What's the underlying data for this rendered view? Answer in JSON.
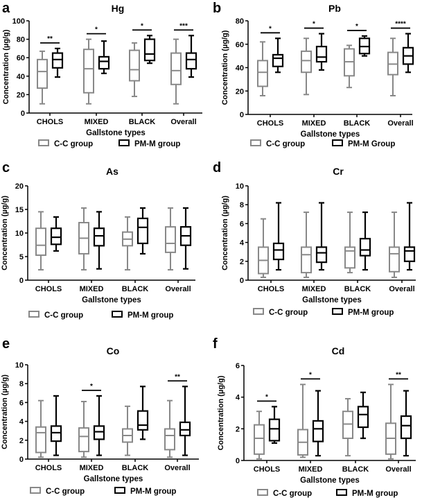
{
  "figure": {
    "colors": {
      "cc": "#888888",
      "pm": "#000000"
    }
  },
  "chart_data": [
    {
      "type": "box",
      "panel": "a",
      "title": "Hg",
      "xlabel": "Gallstone types",
      "ylabel": "Concentration (µg/g)",
      "ylim": [
        0,
        100
      ],
      "yticks": [
        0,
        20,
        40,
        60,
        80,
        100
      ],
      "categories": [
        "CHOLS",
        "MIXED",
        "BLACK",
        "Overall"
      ],
      "legend": [
        "C-C group",
        "PM-M group"
      ],
      "series": [
        {
          "name": "C-C group",
          "boxes": [
            {
              "min": 10,
              "q1": 27,
              "median": 45,
              "q3": 58,
              "max": 67
            },
            {
              "min": 10,
              "q1": 22,
              "median": 48,
              "q3": 69,
              "max": 80
            },
            {
              "min": 18,
              "q1": 35,
              "median": 47,
              "q3": 68,
              "max": 76
            },
            {
              "min": 10,
              "q1": 31,
              "median": 46,
              "q3": 65,
              "max": 80
            }
          ]
        },
        {
          "name": "PM-M group",
          "boxes": [
            {
              "min": 39,
              "q1": 49,
              "median": 58,
              "q3": 65,
              "max": 70
            },
            {
              "min": 43,
              "q1": 48,
              "median": 56,
              "q3": 61,
              "max": 78
            },
            {
              "min": 54,
              "q1": 57,
              "median": 64,
              "q3": 80,
              "max": 84
            },
            {
              "min": 39,
              "q1": 48,
              "median": 58,
              "q3": 65,
              "max": 84
            }
          ]
        }
      ],
      "significance": [
        "**",
        "*",
        "*",
        "***"
      ]
    },
    {
      "type": "box",
      "panel": "b",
      "title": "Pb",
      "xlabel": "Gallstone types",
      "ylabel": "Concentration (µg/g)",
      "ylim": [
        0,
        80
      ],
      "yticks": [
        0,
        20,
        40,
        60,
        80
      ],
      "categories": [
        "CHOLS",
        "MIXED",
        "BLACK",
        "Overall"
      ],
      "legend": [
        "C-C group",
        "PM-M Group"
      ],
      "series": [
        {
          "name": "C-C group",
          "boxes": [
            {
              "min": 16,
              "q1": 24,
              "median": 36,
              "q3": 46,
              "max": 62
            },
            {
              "min": 17,
              "q1": 36,
              "median": 46,
              "q3": 54,
              "max": 65
            },
            {
              "min": 23,
              "q1": 33,
              "median": 45,
              "q3": 56,
              "max": 59
            },
            {
              "min": 16,
              "q1": 34,
              "median": 43,
              "q3": 53,
              "max": 65
            }
          ]
        },
        {
          "name": "PM-M Group",
          "boxes": [
            {
              "min": 36,
              "q1": 41,
              "median": 48,
              "q3": 51,
              "max": 65
            },
            {
              "min": 38,
              "q1": 45,
              "median": 49,
              "q3": 58,
              "max": 69
            },
            {
              "min": 50,
              "q1": 52,
              "median": 58,
              "q3": 65,
              "max": 67
            },
            {
              "min": 36,
              "q1": 43,
              "median": 50,
              "q3": 57,
              "max": 69
            }
          ]
        }
      ],
      "significance": [
        "*",
        "*",
        "*",
        "****"
      ]
    },
    {
      "type": "box",
      "panel": "c",
      "title": "As",
      "xlabel": "Gallstone types",
      "ylabel": "Concentration (µg/g)",
      "ylim": [
        0,
        20
      ],
      "yticks": [
        0,
        5,
        10,
        15,
        20
      ],
      "categories": [
        "CHOLS",
        "MIXED",
        "BLACK",
        "Overall"
      ],
      "legend": [
        "C-C group",
        "PM-M group"
      ],
      "series": [
        {
          "name": "C-C group",
          "boxes": [
            {
              "min": 2.2,
              "q1": 5.3,
              "median": 7.4,
              "q3": 11.0,
              "max": 14.5
            },
            {
              "min": 2.2,
              "q1": 5.6,
              "median": 8.9,
              "q3": 12.2,
              "max": 15.3
            },
            {
              "min": 2.2,
              "q1": 7.3,
              "median": 8.7,
              "q3": 10.2,
              "max": 13.4
            },
            {
              "min": 2.2,
              "q1": 5.9,
              "median": 7.8,
              "q3": 11.3,
              "max": 15.3
            }
          ]
        },
        {
          "name": "PM-M group",
          "boxes": [
            {
              "min": 6.2,
              "q1": 7.6,
              "median": 9.1,
              "q3": 11.0,
              "max": 13.4
            },
            {
              "min": 2.4,
              "q1": 7.3,
              "median": 9.4,
              "q3": 11.0,
              "max": 14.5
            },
            {
              "min": 5.6,
              "q1": 7.8,
              "median": 11.2,
              "q3": 13.1,
              "max": 15.3
            },
            {
              "min": 2.4,
              "q1": 7.4,
              "median": 9.4,
              "q3": 11.3,
              "max": 15.3
            }
          ]
        }
      ],
      "significance": [
        "",
        "",
        "",
        ""
      ]
    },
    {
      "type": "box",
      "panel": "d",
      "title": "Cr",
      "xlabel": "Gallstone types",
      "ylabel": "Concentration (µg/g)",
      "ylim": [
        0,
        10
      ],
      "yticks": [
        0,
        2,
        4,
        6,
        8,
        10
      ],
      "categories": [
        "CHOLS",
        "MIXED",
        "BLACK",
        "Overall"
      ],
      "legend": [
        "C-C group",
        "PM-M group"
      ],
      "series": [
        {
          "name": "C-C group",
          "boxes": [
            {
              "min": 0.3,
              "q1": 0.7,
              "median": 2.1,
              "q3": 3.5,
              "max": 6.5
            },
            {
              "min": 0.3,
              "q1": 0.8,
              "median": 2.7,
              "q3": 3.5,
              "max": 7.2
            },
            {
              "min": 0.8,
              "q1": 1.3,
              "median": 3.1,
              "q3": 3.5,
              "max": 7.2
            },
            {
              "min": 0.3,
              "q1": 0.9,
              "median": 2.8,
              "q3": 3.5,
              "max": 7.2
            }
          ]
        },
        {
          "name": "PM-M group",
          "boxes": [
            {
              "min": 1.1,
              "q1": 2.2,
              "median": 3.2,
              "q3": 3.9,
              "max": 8.2
            },
            {
              "min": 1.1,
              "q1": 1.9,
              "median": 2.9,
              "q3": 3.5,
              "max": 8.2
            },
            {
              "min": 1.1,
              "q1": 2.6,
              "median": 3.2,
              "q3": 4.4,
              "max": 7.2
            },
            {
              "min": 1.1,
              "q1": 2.0,
              "median": 3.1,
              "q3": 3.5,
              "max": 8.2
            }
          ]
        }
      ],
      "significance": [
        "",
        "",
        "",
        ""
      ]
    },
    {
      "type": "box",
      "panel": "e",
      "title": "Co",
      "xlabel": "Gallstone types",
      "ylabel": "Concentration (µg/g)",
      "ylim": [
        0,
        10
      ],
      "yticks": [
        0,
        2,
        4,
        6,
        8,
        10
      ],
      "categories": [
        "CHOLS",
        "MIXED",
        "BLACK",
        "Overall"
      ],
      "legend": [
        "C-C group",
        "PM-M group"
      ],
      "series": [
        {
          "name": "C-C group",
          "boxes": [
            {
              "min": 0.2,
              "q1": 0.7,
              "median": 2.8,
              "q3": 3.4,
              "max": 6.2
            },
            {
              "min": 0.2,
              "q1": 0.8,
              "median": 2.4,
              "q3": 3.3,
              "max": 6.1
            },
            {
              "min": 0.4,
              "q1": 1.8,
              "median": 2.5,
              "q3": 3.2,
              "max": 5.6
            },
            {
              "min": 0.2,
              "q1": 1.0,
              "median": 2.5,
              "q3": 3.2,
              "max": 6.2
            }
          ]
        },
        {
          "name": "PM-M group",
          "boxes": [
            {
              "min": 0.4,
              "q1": 1.9,
              "median": 2.8,
              "q3": 3.5,
              "max": 6.7
            },
            {
              "min": 0.4,
              "q1": 2.1,
              "median": 2.9,
              "q3": 3.5,
              "max": 6.7
            },
            {
              "min": 2.1,
              "q1": 3.1,
              "median": 3.6,
              "q3": 5.1,
              "max": 7.7
            },
            {
              "min": 0.4,
              "q1": 2.5,
              "median": 3.1,
              "q3": 3.9,
              "max": 7.7
            }
          ]
        }
      ],
      "significance": [
        "",
        "*",
        "",
        "**"
      ]
    },
    {
      "type": "box",
      "panel": "f",
      "title": "Cd",
      "xlabel": "Gallstone types",
      "ylabel": "Concentration (µg/g)",
      "ylim": [
        0,
        6
      ],
      "yticks": [
        0,
        2,
        4,
        6
      ],
      "categories": [
        "CHOLS",
        "MIXED",
        "BLACK",
        "Overall"
      ],
      "legend": [
        "C-C group",
        "PM-M group"
      ],
      "series": [
        {
          "name": "C-C group",
          "boxes": [
            {
              "min": 0.1,
              "q1": 0.4,
              "median": 1.4,
              "q3": 2.25,
              "max": 3.1
            },
            {
              "min": 0.2,
              "q1": 0.35,
              "median": 1.15,
              "q3": 1.95,
              "max": 4.8
            },
            {
              "min": 0.3,
              "q1": 1.4,
              "median": 2.3,
              "q3": 3.1,
              "max": 3.9
            },
            {
              "min": 0.1,
              "q1": 0.4,
              "median": 1.4,
              "q3": 2.35,
              "max": 4.8
            }
          ]
        },
        {
          "name": "PM-M group",
          "boxes": [
            {
              "min": 1.1,
              "q1": 1.25,
              "median": 2.0,
              "q3": 2.6,
              "max": 3.4
            },
            {
              "min": 0.3,
              "q1": 1.2,
              "median": 2.0,
              "q3": 2.5,
              "max": 4.4
            },
            {
              "min": 1.4,
              "q1": 2.1,
              "median": 2.9,
              "q3": 3.4,
              "max": 4.3
            },
            {
              "min": 0.3,
              "q1": 1.4,
              "median": 2.2,
              "q3": 2.8,
              "max": 4.4
            }
          ]
        }
      ],
      "significance": [
        "*",
        "*",
        "",
        "**"
      ]
    }
  ]
}
